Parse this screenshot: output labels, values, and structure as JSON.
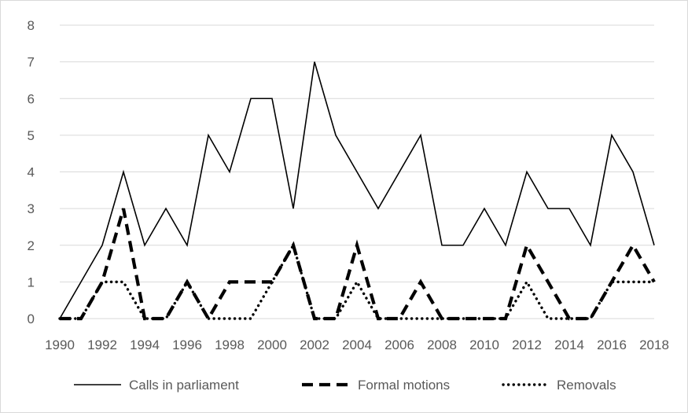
{
  "chart_data": {
    "type": "line",
    "title": "",
    "xlabel": "",
    "ylabel": "",
    "x": [
      1990,
      1991,
      1992,
      1993,
      1994,
      1995,
      1996,
      1997,
      1998,
      1999,
      2000,
      2001,
      2002,
      2003,
      2004,
      2005,
      2006,
      2007,
      2008,
      2009,
      2010,
      2011,
      2012,
      2013,
      2014,
      2015,
      2016,
      2017,
      2018
    ],
    "x_tick_labels": [
      "1990",
      "1992",
      "1994",
      "1996",
      "1998",
      "2000",
      "2002",
      "2004",
      "2006",
      "2008",
      "2010",
      "2012",
      "2014",
      "2016",
      "2018"
    ],
    "ylim": [
      0,
      8
    ],
    "y_tick_labels": [
      "0",
      "1",
      "2",
      "3",
      "4",
      "5",
      "6",
      "7",
      "8"
    ],
    "grid": "horizontal",
    "legend_position": "bottom",
    "series": [
      {
        "name": "Calls in parliament",
        "style": "solid",
        "color": "#000000",
        "values": [
          0,
          1,
          2,
          4,
          2,
          3,
          2,
          5,
          4,
          6,
          6,
          3,
          7,
          5,
          4,
          3,
          4,
          5,
          2,
          2,
          3,
          2,
          4,
          3,
          3,
          2,
          5,
          4,
          2
        ]
      },
      {
        "name": "Formal motions",
        "style": "dashed",
        "color": "#000000",
        "values": [
          0,
          0,
          1,
          3,
          0,
          0,
          1,
          0,
          1,
          1,
          1,
          2,
          0,
          0,
          2,
          0,
          0,
          1,
          0,
          0,
          0,
          0,
          2,
          1,
          0,
          0,
          1,
          2,
          1
        ]
      },
      {
        "name": "Removals",
        "style": "dotted",
        "color": "#000000",
        "values": [
          0,
          0,
          1,
          1,
          0,
          0,
          1,
          0,
          0,
          0,
          1,
          2,
          0,
          0,
          1,
          0,
          0,
          0,
          0,
          0,
          0,
          0,
          1,
          0,
          0,
          0,
          1,
          1,
          1
        ]
      }
    ]
  }
}
